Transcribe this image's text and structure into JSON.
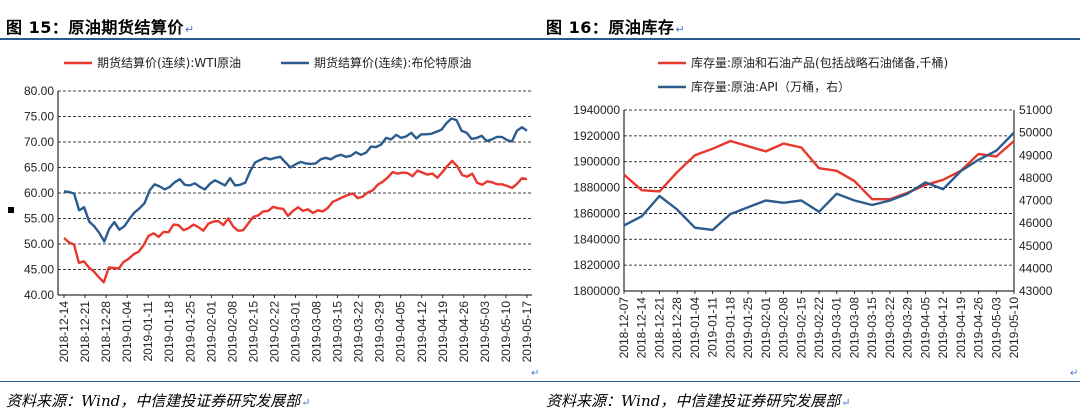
{
  "left": {
    "title": "图 15：原油期货结算价",
    "source": "资料来源：Wind，中信建投证券研究发展部",
    "chart_data": {
      "type": "line",
      "legend_position": "top",
      "grid": "horizontal-dashed",
      "ylim": [
        40,
        80
      ],
      "y_ticks": [
        "80.00",
        "75.00",
        "70.00",
        "65.00",
        "60.00",
        "55.00",
        "50.00",
        "45.00",
        "40.00"
      ],
      "x_tick_labels": [
        "2018-12-14",
        "2018-12-21",
        "2018-12-28",
        "2019-01-04",
        "2019-01-11",
        "2019-01-18",
        "2019-01-25",
        "2019-02-01",
        "2019-02-08",
        "2019-02-15",
        "2019-02-22",
        "2019-03-01",
        "2019-03-08",
        "2019-03-15",
        "2019-03-22",
        "2019-03-29",
        "2019-04-05",
        "2019-04-12",
        "2019-04-19",
        "2019-04-26",
        "2019-05-03",
        "2019-05-10",
        "2019-05-17"
      ],
      "series": [
        {
          "name": "期货结算价(连续):WTI原油",
          "color": "#e8372c",
          "values": [
            51.2,
            50.3,
            49.9,
            46.3,
            46.6,
            45.4,
            44.6,
            43.5,
            42.5,
            45.4,
            45.3,
            45.2,
            46.5,
            47.1,
            48.0,
            48.5,
            49.8,
            51.6,
            52.1,
            51.4,
            52.4,
            52.3,
            53.8,
            53.7,
            52.7,
            53.1,
            53.8,
            53.3,
            52.6,
            54.0,
            54.4,
            54.5,
            53.7,
            55.0,
            53.4,
            52.6,
            52.7,
            54.0,
            55.3,
            55.6,
            56.4,
            56.5,
            57.3,
            57.0,
            56.9,
            55.5,
            56.5,
            57.2,
            56.5,
            56.8,
            56.1,
            56.6,
            56.4,
            57.1,
            58.3,
            58.7,
            59.2,
            59.6,
            59.9,
            59.0,
            59.3,
            60.1,
            60.5,
            61.6,
            62.2,
            63.0,
            64.1,
            63.8,
            64.0,
            63.9,
            63.3,
            64.4,
            64.0,
            63.6,
            63.8,
            63.0,
            64.1,
            65.3,
            66.3,
            65.2,
            63.5,
            63.2,
            63.8,
            62.0,
            61.6,
            62.3,
            62.1,
            61.7,
            61.7,
            61.4,
            61.0,
            61.8,
            62.9,
            62.7
          ],
          "approximate": true
        },
        {
          "name": "期货结算价(连续):布伦特原油",
          "color": "#2c5b8e",
          "values": [
            60.3,
            60.2,
            59.9,
            56.6,
            57.2,
            54.4,
            53.5,
            52.2,
            50.5,
            53.0,
            54.3,
            52.8,
            53.5,
            54.9,
            56.2,
            57.0,
            58.0,
            60.5,
            61.7,
            61.3,
            60.7,
            61.2,
            62.1,
            62.7,
            61.6,
            61.5,
            61.9,
            61.2,
            60.7,
            61.8,
            62.5,
            62.0,
            61.5,
            62.9,
            61.5,
            61.6,
            62.0,
            64.3,
            66.0,
            66.5,
            66.9,
            66.6,
            66.9,
            67.1,
            66.0,
            65.0,
            65.6,
            66.1,
            65.8,
            65.7,
            65.8,
            66.6,
            66.9,
            66.6,
            67.2,
            67.5,
            67.1,
            67.3,
            68.0,
            67.5,
            67.9,
            69.1,
            69.0,
            69.5,
            70.8,
            70.5,
            71.4,
            70.8,
            71.1,
            71.8,
            70.7,
            71.5,
            71.5,
            71.6,
            72.0,
            72.4,
            73.7,
            74.6,
            74.3,
            72.2,
            71.8,
            70.6,
            70.8,
            71.2,
            70.2,
            70.5,
            71.0,
            71.0,
            70.4,
            70.1,
            72.2,
            72.9,
            72.2
          ],
          "approximate": true
        }
      ]
    }
  },
  "right": {
    "title": "图 16：原油库存",
    "source": "资料来源：Wind，中信建投证券研究发展部",
    "chart_data": {
      "type": "line",
      "legend_position": "top",
      "grid": "horizontal-dashed",
      "ylim_left": [
        1800000,
        1940000
      ],
      "ylim_right": [
        43000,
        51000
      ],
      "y_ticks_left": [
        "1940000",
        "1920000",
        "1900000",
        "1880000",
        "1860000",
        "1840000",
        "1820000",
        "1800000"
      ],
      "y_ticks_right": [
        "51000",
        "50000",
        "49000",
        "48000",
        "47000",
        "46000",
        "45000",
        "44000",
        "43000"
      ],
      "x_tick_labels": [
        "2018-12-07",
        "2018-12-14",
        "2018-12-21",
        "2018-12-28",
        "2019-01-04",
        "2019-01-11",
        "2019-01-18",
        "2019-01-25",
        "2019-02-01",
        "2019-02-08",
        "2019-02-15",
        "2019-02-22",
        "2019-03-01",
        "2019-03-08",
        "2019-03-15",
        "2019-03-22",
        "2019-03-29",
        "2019-04-05",
        "2019-04-12",
        "2019-04-19",
        "2019-04-26",
        "2019-05-03",
        "2019-05-10"
      ],
      "series": [
        {
          "name": "库存量:原油和石油产品(包括战略石油储备,千桶)",
          "axis": "left",
          "color": "#e8372c",
          "values": [
            1890000,
            1878000,
            1877000,
            1892000,
            1905000,
            1910000,
            1916000,
            1912000,
            1908000,
            1914000,
            1911000,
            1895000,
            1893000,
            1885000,
            1871000,
            1871000,
            1876000,
            1882000,
            1886000,
            1893000,
            1906000,
            1904000,
            1916000
          ],
          "approximate": true
        },
        {
          "name": "库存量:原油:API（万桶，右）",
          "axis": "right",
          "color": "#2c5b8e",
          "values": [
            45900,
            46300,
            47200,
            46600,
            45800,
            45700,
            46400,
            46700,
            47000,
            46900,
            47000,
            46500,
            47300,
            47000,
            46800,
            47000,
            47300,
            47800,
            47500,
            48300,
            48800,
            49200,
            50000
          ],
          "approximate": true
        }
      ]
    }
  }
}
